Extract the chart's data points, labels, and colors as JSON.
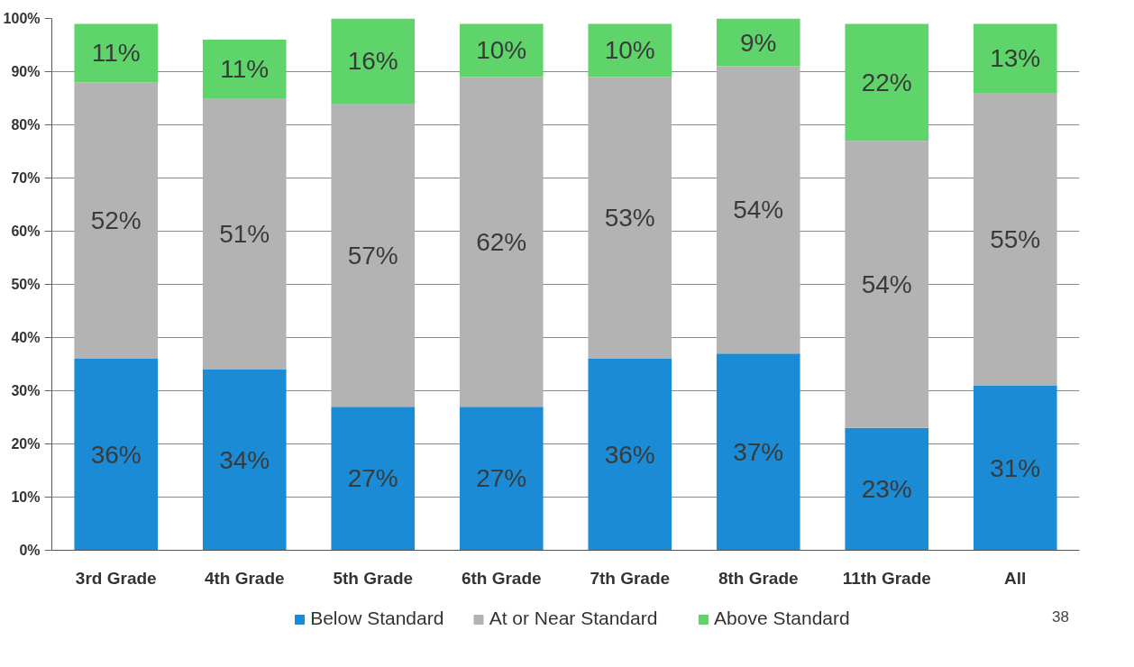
{
  "chart_data": {
    "type": "bar",
    "stacked": true,
    "categories": [
      "3rd Grade",
      "4th Grade",
      "5th Grade",
      "6th Grade",
      "7th Grade",
      "8th Grade",
      "11th Grade",
      "All"
    ],
    "series": [
      {
        "name": "Below Standard",
        "color": "#1a8bd4",
        "values": [
          36,
          34,
          27,
          27,
          36,
          37,
          23,
          31
        ],
        "value_labels": [
          "36%",
          "34%",
          "27%",
          "27%",
          "36%",
          "37%",
          "23%",
          "31%"
        ]
      },
      {
        "name": "At or Near Standard",
        "color": "#b3b3b3",
        "values": [
          52,
          51,
          57,
          62,
          53,
          54,
          54,
          55
        ],
        "value_labels": [
          "52%",
          "51%",
          "57%",
          "62%",
          "53%",
          "54%",
          "54%",
          "55%"
        ]
      },
      {
        "name": "Above Standard",
        "color": "#5ed46a",
        "values": [
          11,
          11,
          16,
          10,
          10,
          9,
          22,
          13
        ],
        "value_labels": [
          "11%",
          "11%",
          "16%",
          "10%",
          "10%",
          "9%",
          "22%",
          "13%"
        ]
      }
    ],
    "ylim": [
      0,
      100
    ],
    "yticks": [
      {
        "value": 0,
        "label": "0%"
      },
      {
        "value": 10,
        "label": "10%"
      },
      {
        "value": 20,
        "label": "20%"
      },
      {
        "value": 30,
        "label": "30%"
      },
      {
        "value": 40,
        "label": "40%"
      },
      {
        "value": 50,
        "label": "50%"
      },
      {
        "value": 60,
        "label": "60%"
      },
      {
        "value": 70,
        "label": "70%"
      },
      {
        "value": 80,
        "label": "80%"
      },
      {
        "value": 90,
        "label": "90%"
      },
      {
        "value": 100,
        "label": "100%"
      }
    ],
    "grid": "y",
    "legend": "bottom",
    "annotations": [
      "38"
    ]
  }
}
